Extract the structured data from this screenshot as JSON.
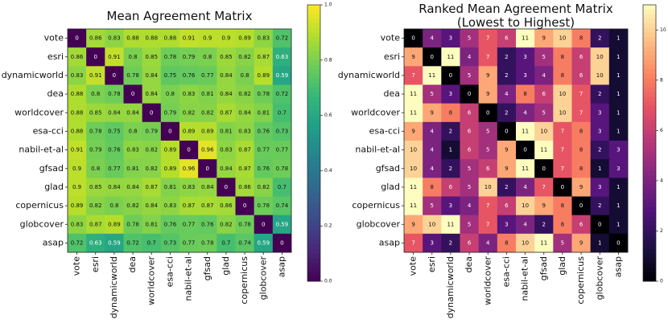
{
  "chart_data": [
    {
      "type": "heatmap",
      "title": "Mean Agreement Matrix",
      "colormap": "viridis",
      "labels": [
        "vote",
        "esri",
        "dynamicworld",
        "dea",
        "worldcover",
        "esa-cci",
        "nabil-et-al",
        "gfsad",
        "glad",
        "copernicus",
        "globcover",
        "asap"
      ],
      "vmin": 0,
      "vmax": 1,
      "colorbar_ticks": [
        "0.0",
        "0.2",
        "0.4",
        "0.6",
        "0.8",
        "1.0"
      ],
      "values": [
        [
          0,
          0.86,
          0.83,
          0.88,
          0.88,
          0.88,
          0.91,
          0.9,
          0.9,
          0.89,
          0.83,
          0.72
        ],
        [
          0.86,
          0,
          0.91,
          0.8,
          0.85,
          0.78,
          0.79,
          0.8,
          0.85,
          0.82,
          0.87,
          0.63
        ],
        [
          0.83,
          0.91,
          0,
          0.78,
          0.84,
          0.75,
          0.76,
          0.77,
          0.84,
          0.8,
          0.89,
          0.59
        ],
        [
          0.88,
          0.8,
          0.78,
          0,
          0.84,
          0.8,
          0.83,
          0.81,
          0.84,
          0.82,
          0.78,
          0.72
        ],
        [
          0.88,
          0.85,
          0.84,
          0.84,
          0,
          0.79,
          0.82,
          0.82,
          0.87,
          0.84,
          0.81,
          0.7
        ],
        [
          0.88,
          0.78,
          0.75,
          0.8,
          0.79,
          0,
          0.89,
          0.89,
          0.81,
          0.83,
          0.76,
          0.73
        ],
        [
          0.91,
          0.79,
          0.76,
          0.83,
          0.82,
          0.89,
          0,
          0.96,
          0.83,
          0.87,
          0.77,
          0.77
        ],
        [
          0.9,
          0.8,
          0.77,
          0.81,
          0.82,
          0.89,
          0.96,
          0,
          0.84,
          0.87,
          0.76,
          0.78
        ],
        [
          0.9,
          0.85,
          0.84,
          0.84,
          0.87,
          0.81,
          0.83,
          0.84,
          0,
          0.86,
          0.82,
          0.7
        ],
        [
          0.89,
          0.82,
          0.8,
          0.82,
          0.84,
          0.83,
          0.87,
          0.87,
          0.86,
          0,
          0.78,
          0.74
        ],
        [
          0.83,
          0.87,
          0.89,
          0.78,
          0.81,
          0.76,
          0.77,
          0.76,
          0.82,
          0.78,
          0,
          0.59
        ],
        [
          0.72,
          0.63,
          0.59,
          0.72,
          0.7,
          0.73,
          0.77,
          0.78,
          0.7,
          0.74,
          0.59,
          0
        ]
      ]
    },
    {
      "type": "heatmap",
      "title": "Ranked Mean Agreement Matrix\n(Lowest to Highest)",
      "colormap": "magma",
      "labels": [
        "vote",
        "esri",
        "dynamicworld",
        "dea",
        "worldcover",
        "esa-cci",
        "nabil-et-al",
        "gfsad",
        "glad",
        "copernicus",
        "globcover",
        "asap"
      ],
      "vmin": 0,
      "vmax": 11,
      "colorbar_ticks": [
        "0",
        "2",
        "4",
        "6",
        "8",
        "10"
      ],
      "values": [
        [
          0,
          4,
          3,
          5,
          7,
          6,
          11,
          9,
          10,
          8,
          2,
          1
        ],
        [
          9,
          0,
          11,
          4,
          7,
          2,
          3,
          5,
          8,
          6,
          10,
          1
        ],
        [
          7,
          11,
          0,
          5,
          9,
          2,
          3,
          4,
          8,
          6,
          10,
          1
        ],
        [
          11,
          5,
          3,
          0,
          9,
          4,
          8,
          6,
          10,
          7,
          2,
          1
        ],
        [
          11,
          9,
          8,
          6,
          0,
          2,
          4,
          5,
          10,
          7,
          3,
          1
        ],
        [
          9,
          4,
          2,
          6,
          5,
          0,
          11,
          10,
          7,
          8,
          3,
          1
        ],
        [
          10,
          4,
          1,
          6,
          5,
          9,
          0,
          11,
          7,
          8,
          2,
          3
        ],
        [
          10,
          4,
          2,
          5,
          6,
          9,
          11,
          0,
          7,
          8,
          1,
          3
        ],
        [
          11,
          8,
          6,
          5,
          10,
          2,
          4,
          7,
          0,
          9,
          3,
          1
        ],
        [
          11,
          5,
          3,
          4,
          7,
          6,
          10,
          9,
          8,
          0,
          2,
          1
        ],
        [
          9,
          10,
          11,
          5,
          7,
          3,
          4,
          2,
          8,
          6,
          0,
          1
        ],
        [
          7,
          3,
          2,
          6,
          4,
          8,
          10,
          11,
          5,
          9,
          1,
          0
        ]
      ]
    }
  ]
}
